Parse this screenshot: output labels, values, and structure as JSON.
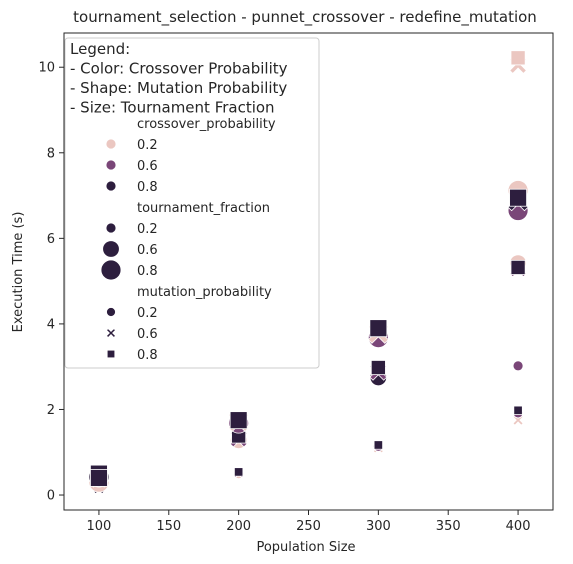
{
  "chart_data": {
    "type": "scatter",
    "title": "tournament_selection - punnet_crossover - redefine_mutation",
    "xlabel": "Population Size",
    "ylabel": "Execution Time (s)",
    "xlim": [
      75,
      425
    ],
    "ylim": [
      -0.35,
      10.8
    ],
    "x_ticks": [
      100,
      150,
      200,
      250,
      300,
      350,
      400
    ],
    "y_ticks": [
      0,
      2,
      4,
      6,
      8,
      10
    ],
    "grid": false,
    "legend_position": "top-left",
    "legend_title_lines": [
      "Legend:",
      "- Color: Crossover Probability",
      "- Shape: Mutation Probability",
      "- Size: Tournament Fraction"
    ],
    "legend_groups": [
      {
        "title": "crossover_probability",
        "entries": [
          {
            "label": "0.2",
            "color": "#ebc7c1"
          },
          {
            "label": "0.6",
            "color": "#7a4678"
          },
          {
            "label": "0.8",
            "color": "#2d1e3e"
          }
        ]
      },
      {
        "title": "tournament_fraction",
        "entries": [
          {
            "label": "0.2",
            "size": 0.2
          },
          {
            "label": "0.6",
            "size": 0.6
          },
          {
            "label": "0.8",
            "size": 0.8
          }
        ]
      },
      {
        "title": "mutation_probability",
        "entries": [
          {
            "label": "0.2",
            "shape": "circle"
          },
          {
            "label": "0.6",
            "shape": "x"
          },
          {
            "label": "0.8",
            "shape": "square"
          }
        ]
      }
    ],
    "colors": {
      "0.2": "#ebc7c1",
      "0.6": "#7a4678",
      "0.8": "#2d1e3e"
    },
    "points": [
      {
        "x": 100,
        "y": 0.15,
        "c": "0.8",
        "m": "0.6",
        "t": 0.2
      },
      {
        "x": 100,
        "y": 0.22,
        "c": "0.6",
        "m": "0.2",
        "t": 0.2
      },
      {
        "x": 100,
        "y": 0.3,
        "c": "0.2",
        "m": "0.2",
        "t": 0.8
      },
      {
        "x": 100,
        "y": 0.38,
        "c": "0.6",
        "m": "0.6",
        "t": 0.6
      },
      {
        "x": 100,
        "y": 0.42,
        "c": "0.8",
        "m": "0.2",
        "t": 0.8
      },
      {
        "x": 100,
        "y": 0.47,
        "c": "0.6",
        "m": "0.8",
        "t": 0.6
      },
      {
        "x": 100,
        "y": 0.5,
        "c": "0.8",
        "m": "0.8",
        "t": 0.8
      },
      {
        "x": 100,
        "y": 0.4,
        "c": "0.8",
        "m": "0.8",
        "t": 0.8
      },
      {
        "x": 200,
        "y": 0.5,
        "c": "0.2",
        "m": "0.2",
        "t": 0.2
      },
      {
        "x": 200,
        "y": 0.52,
        "c": "0.6",
        "m": "0.6",
        "t": 0.2
      },
      {
        "x": 200,
        "y": 0.54,
        "c": "0.8",
        "m": "0.8",
        "t": 0.2
      },
      {
        "x": 200,
        "y": 1.28,
        "c": "0.2",
        "m": "0.2",
        "t": 0.6
      },
      {
        "x": 200,
        "y": 1.32,
        "c": "0.6",
        "m": "0.6",
        "t": 0.6
      },
      {
        "x": 200,
        "y": 1.38,
        "c": "0.8",
        "m": "0.8",
        "t": 0.6
      },
      {
        "x": 200,
        "y": 1.68,
        "c": "0.6",
        "m": "0.2",
        "t": 0.8
      },
      {
        "x": 200,
        "y": 1.72,
        "c": "0.2",
        "m": "0.6",
        "t": 0.8
      },
      {
        "x": 200,
        "y": 1.75,
        "c": "0.8",
        "m": "0.8",
        "t": 0.8
      },
      {
        "x": 300,
        "y": 1.1,
        "c": "0.2",
        "m": "0.6",
        "t": 0.2
      },
      {
        "x": 300,
        "y": 1.14,
        "c": "0.6",
        "m": "0.2",
        "t": 0.2
      },
      {
        "x": 300,
        "y": 1.17,
        "c": "0.8",
        "m": "0.8",
        "t": 0.2
      },
      {
        "x": 300,
        "y": 2.75,
        "c": "0.8",
        "m": "0.2",
        "t": 0.6
      },
      {
        "x": 300,
        "y": 2.88,
        "c": "0.6",
        "m": "0.6",
        "t": 0.6
      },
      {
        "x": 300,
        "y": 2.98,
        "c": "0.8",
        "m": "0.8",
        "t": 0.6
      },
      {
        "x": 300,
        "y": 3.68,
        "c": "0.6",
        "m": "0.2",
        "t": 0.8
      },
      {
        "x": 300,
        "y": 3.78,
        "c": "0.2",
        "m": "0.6",
        "t": 0.8
      },
      {
        "x": 300,
        "y": 3.9,
        "c": "0.8",
        "m": "0.8",
        "t": 0.8
      },
      {
        "x": 400,
        "y": 1.75,
        "c": "0.2",
        "m": "0.6",
        "t": 0.2
      },
      {
        "x": 400,
        "y": 1.92,
        "c": "0.6",
        "m": "0.2",
        "t": 0.2
      },
      {
        "x": 400,
        "y": 1.98,
        "c": "0.8",
        "m": "0.8",
        "t": 0.2
      },
      {
        "x": 400,
        "y": 3.02,
        "c": "0.6",
        "m": "0.2",
        "t": 0.2
      },
      {
        "x": 400,
        "y": 5.3,
        "c": "0.6",
        "m": "0.6",
        "t": 0.6
      },
      {
        "x": 400,
        "y": 5.42,
        "c": "0.2",
        "m": "0.2",
        "t": 0.6
      },
      {
        "x": 400,
        "y": 5.32,
        "c": "0.8",
        "m": "0.8",
        "t": 0.6
      },
      {
        "x": 400,
        "y": 6.65,
        "c": "0.6",
        "m": "0.2",
        "t": 0.8
      },
      {
        "x": 400,
        "y": 6.88,
        "c": "0.8",
        "m": "0.6",
        "t": 0.8
      },
      {
        "x": 400,
        "y": 7.12,
        "c": "0.2",
        "m": "0.2",
        "t": 0.8
      },
      {
        "x": 400,
        "y": 6.95,
        "c": "0.8",
        "m": "0.8",
        "t": 0.8
      },
      {
        "x": 400,
        "y": 10.05,
        "c": "0.2",
        "m": "0.6",
        "t": 0.6
      },
      {
        "x": 400,
        "y": 10.22,
        "c": "0.2",
        "m": "0.8",
        "t": 0.6
      }
    ]
  }
}
